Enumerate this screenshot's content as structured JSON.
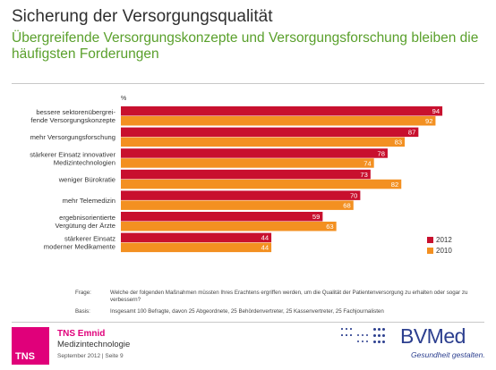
{
  "header": {
    "title": "Sicherung der Versorgungsqualität",
    "subtitle": "Übergreifende Versorgungskonzepte und Versorgungsforschung bleiben die häufigsten Forderungen"
  },
  "chart_data": {
    "type": "bar",
    "orientation": "horizontal",
    "unit_label": "%",
    "categories": [
      "bessere sektorenübergrei-\nfende Versorgungskonzepte",
      "mehr Versorgungsforschung",
      "stärkerer Einsatz innovativer\nMedizintechnologien",
      "weniger Bürokratie",
      "mehr Telemedizin",
      "ergebnisorientierte\nVergütung der Ärzte",
      "stärkerer Einsatz\nmoderner Medikamente"
    ],
    "series": [
      {
        "name": "2012",
        "color": "#c8102e",
        "values": [
          94,
          87,
          78,
          73,
          70,
          59,
          44
        ]
      },
      {
        "name": "2010",
        "color": "#f39021",
        "values": [
          92,
          83,
          74,
          82,
          68,
          63,
          44
        ]
      }
    ],
    "xlim": [
      0,
      100
    ],
    "grid": false,
    "legend_position": "bottom-right"
  },
  "footnote": {
    "frage_label": "Frage:",
    "frage_text": "Welche der folgenden Maßnahmen müssten Ihres Erachtens ergriffen werden, um die Qualität der Patientenversorgung zu erhalten oder sogar zu verbessern?",
    "basis_label": "Basis:",
    "basis_text": "Insgesamt 100 Befragte, davon 25  Abgeordnete, 25  Behördenvertreter, 25  Kassenvertreter, 25  Fachjournalisten"
  },
  "footer": {
    "logo_text": "TNS",
    "company": "TNS Emnid",
    "project": "Medizintechnologie",
    "date": "September 2012  |  Seite 9",
    "bvmed_name": "BVMed",
    "bvmed_slogan": "Gesundheit gestalten."
  }
}
